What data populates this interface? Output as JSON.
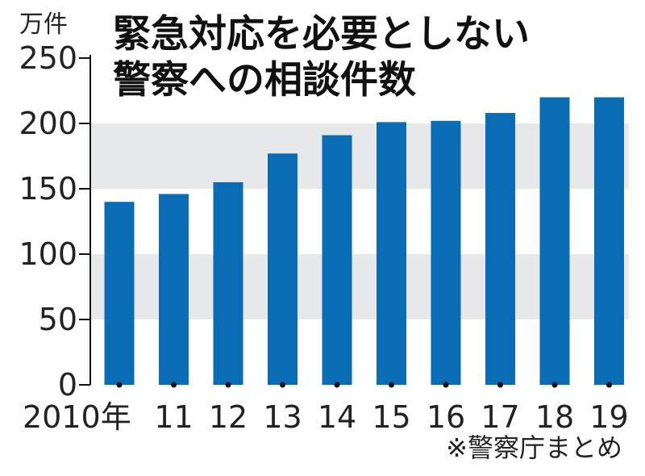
{
  "chart_data": {
    "type": "bar",
    "title": "緊急対応を必要としない",
    "subtitle": "警察への相談件数",
    "unit_label": "万件",
    "source_note": "※警察庁まとめ",
    "categories": [
      "2010年",
      "11",
      "12",
      "13",
      "14",
      "15",
      "16",
      "17",
      "18",
      "19"
    ],
    "values": [
      140,
      146,
      155,
      177,
      191,
      201,
      202,
      208,
      220,
      220
    ],
    "ylim": [
      0,
      250
    ],
    "yticks": [
      0,
      50,
      100,
      150,
      200,
      250
    ],
    "bar_color": "#0a6cb5",
    "band_color": "#e6e8ea",
    "shaded_bands": [
      [
        50,
        100
      ],
      [
        150,
        200
      ]
    ],
    "grid": false,
    "legend": "none"
  }
}
